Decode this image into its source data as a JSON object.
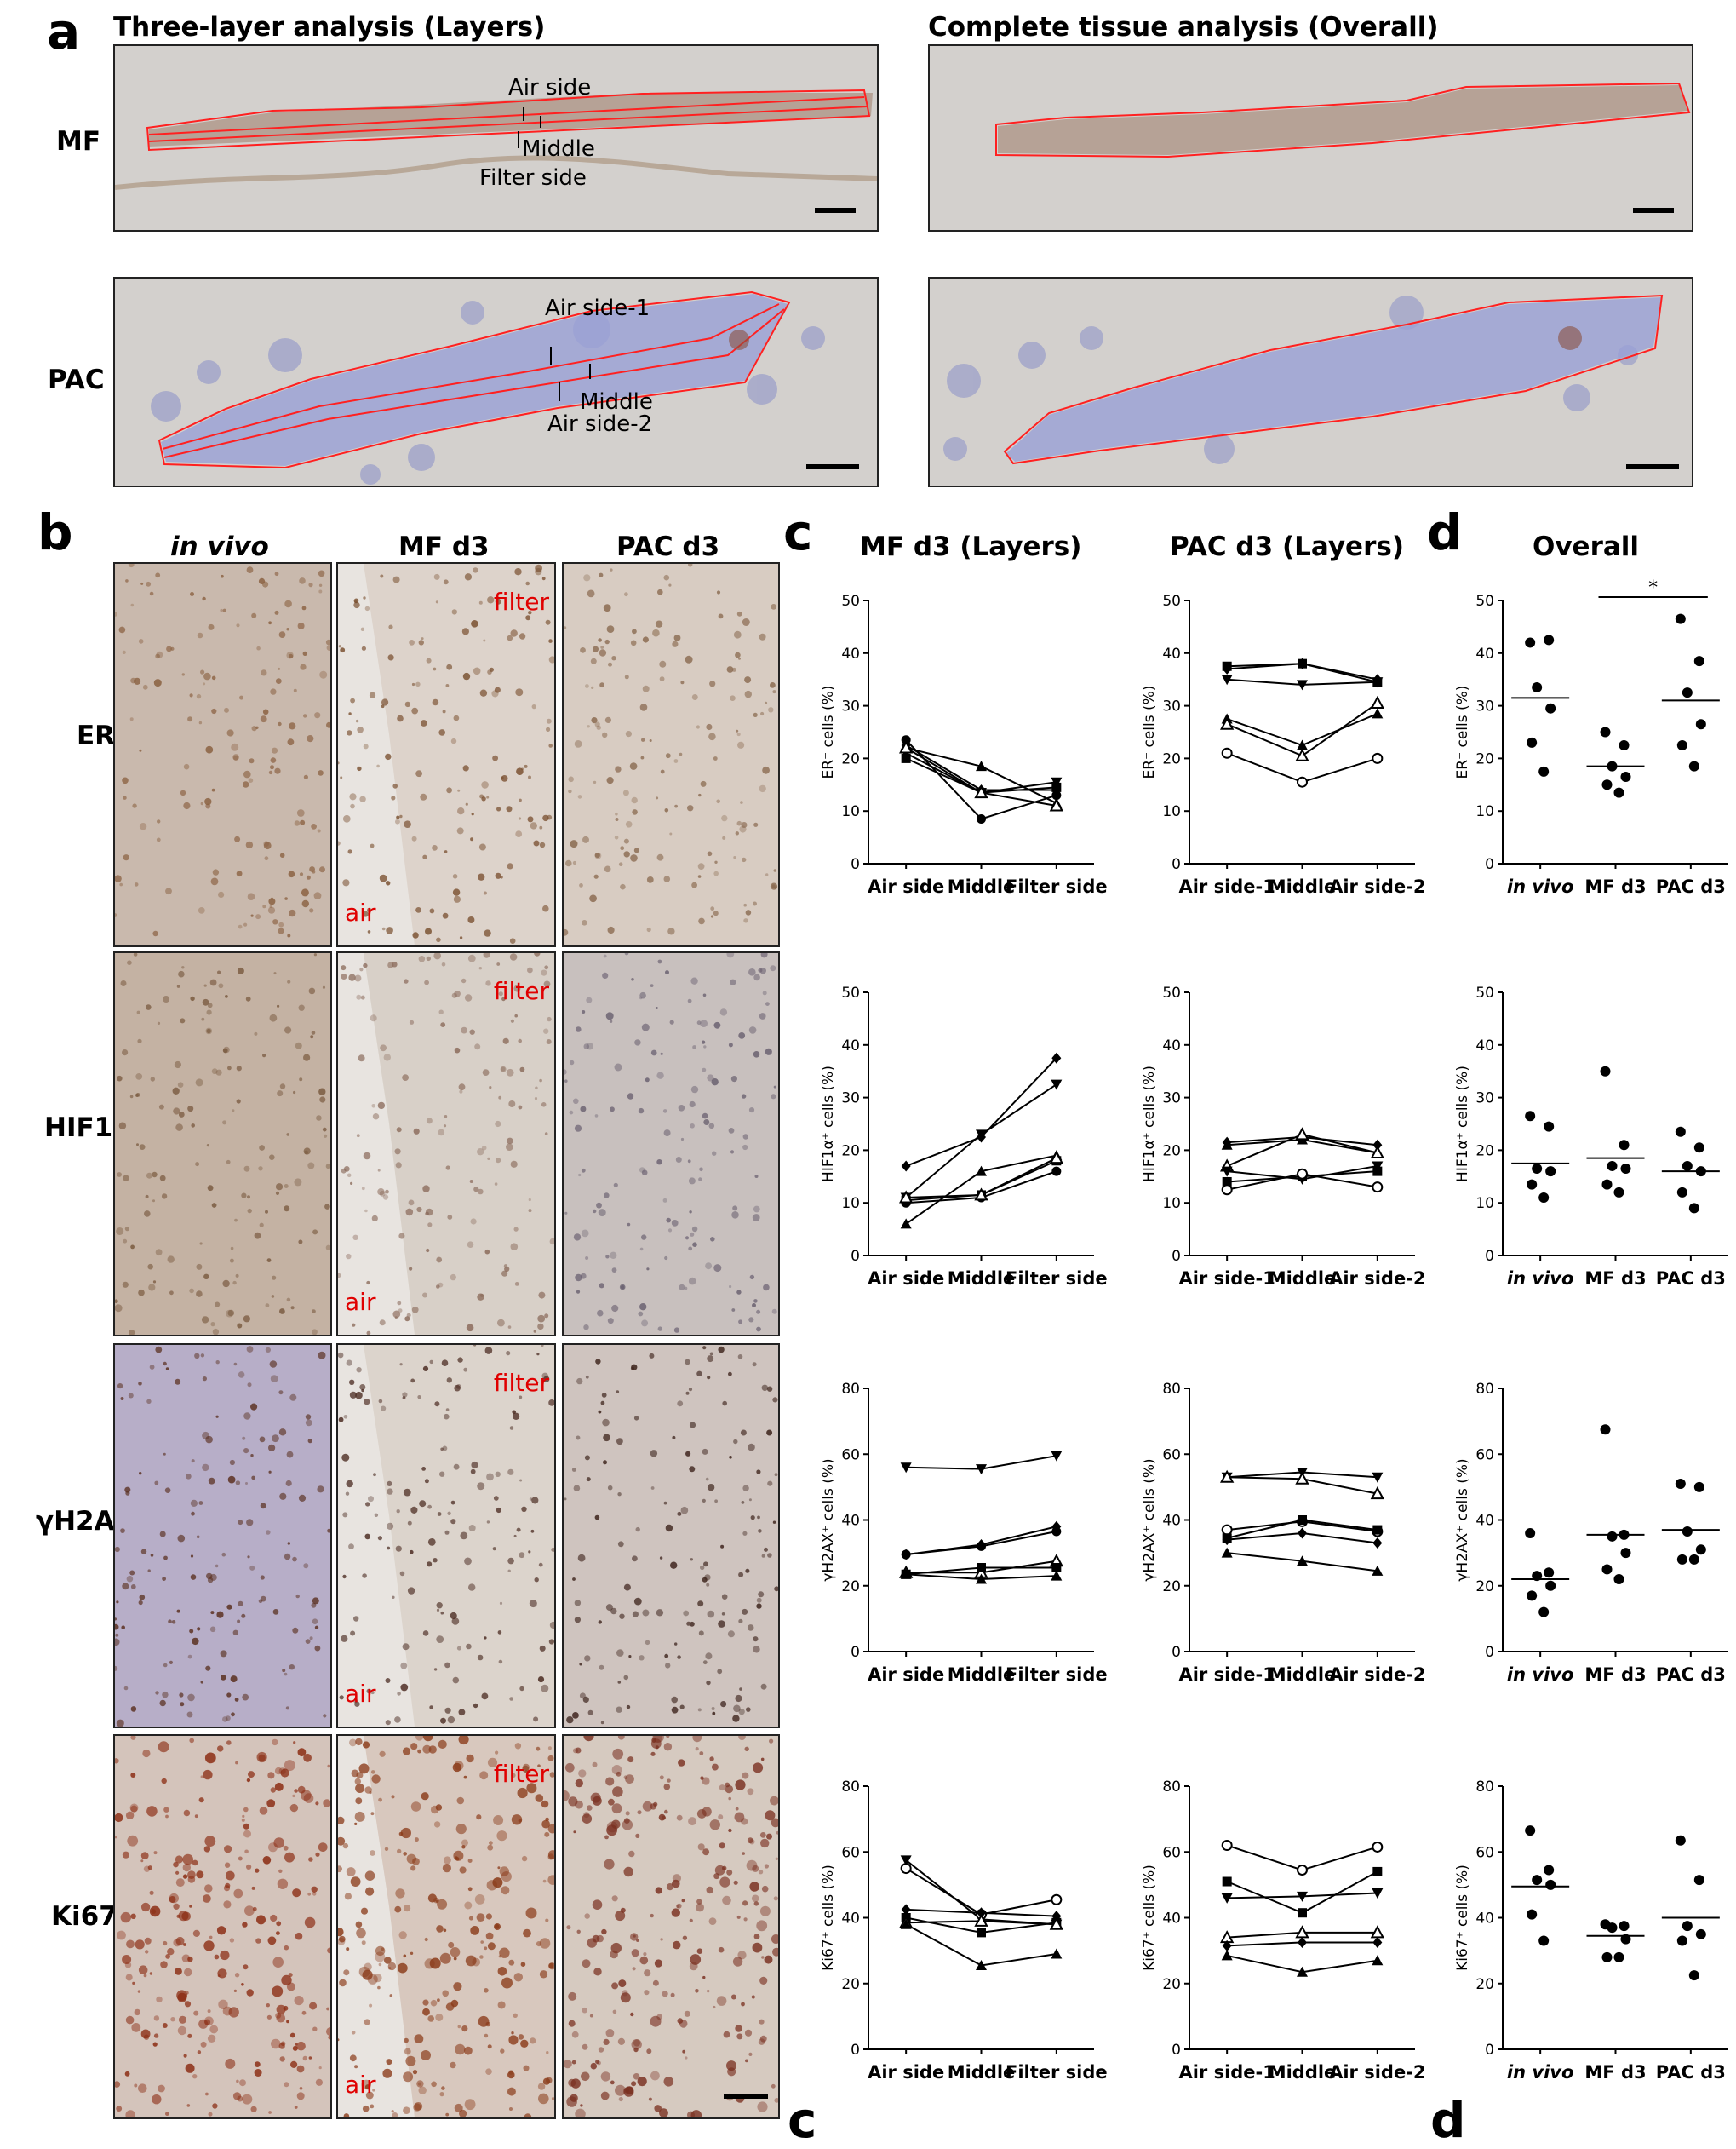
{
  "panel_a": {
    "letter": "a",
    "header_layers": "Three-layer analysis (Layers)",
    "header_overall": "Complete tissue analysis (Overall)",
    "row_labels": [
      "MF",
      "PAC"
    ],
    "mf_labels": [
      "Air side",
      "Middle",
      "Filter side"
    ],
    "pac_labels": [
      "Air side-1",
      "Middle",
      "Air side-2"
    ]
  },
  "panel_b": {
    "letter": "b",
    "columns": [
      "in vivo",
      "MF d3",
      "PAC d3"
    ],
    "rows": [
      "ER",
      "HIF1α",
      "γH2Ax",
      "Ki67"
    ],
    "label_filter": "filter",
    "label_air": "air"
  },
  "panel_c": {
    "letter": "c",
    "header_mf": "MF d3 (Layers)",
    "header_pac": "PAC d3 (Layers)"
  },
  "panel_d": {
    "letter": "d",
    "header": "Overall"
  },
  "chart_data": [
    {
      "id": "c-mf-er",
      "type": "line",
      "x_categories": [
        "Air side",
        "Middle",
        "Filter side"
      ],
      "ylabel": "ER⁺ cells (%)",
      "ylim": [
        0,
        50
      ],
      "yticks": [
        0,
        10,
        20,
        30,
        40,
        50
      ],
      "series": [
        {
          "marker": "square",
          "values": [
            20,
            13.5,
            14.5
          ]
        },
        {
          "marker": "triangle",
          "values": [
            22,
            18.5,
            11.5
          ]
        },
        {
          "marker": "circle",
          "values": [
            23.5,
            8.5,
            13
          ]
        },
        {
          "marker": "diamond",
          "values": [
            22.5,
            14,
            14
          ]
        },
        {
          "marker": "triangle-down",
          "values": [
            21,
            13.5,
            15.5
          ]
        },
        {
          "marker": "triangle-open",
          "values": [
            22,
            13.5,
            11
          ]
        }
      ]
    },
    {
      "id": "c-pac-er",
      "type": "line",
      "x_categories": [
        "Air side-1",
        "Middle",
        "Air side-2"
      ],
      "ylabel": "ER⁺ cells (%)",
      "ylim": [
        0,
        50
      ],
      "yticks": [
        0,
        10,
        20,
        30,
        40,
        50
      ],
      "series": [
        {
          "marker": "square",
          "values": [
            37.5,
            38,
            34.5
          ]
        },
        {
          "marker": "triangle-down",
          "values": [
            35,
            34,
            34.5
          ]
        },
        {
          "marker": "diamond",
          "values": [
            37,
            38,
            35
          ]
        },
        {
          "marker": "triangle",
          "values": [
            27.5,
            22.5,
            28.5
          ]
        },
        {
          "marker": "triangle-open",
          "values": [
            26.5,
            20.5,
            30.5
          ]
        },
        {
          "marker": "circle-open",
          "values": [
            21,
            15.5,
            20
          ]
        }
      ]
    },
    {
      "id": "d-er",
      "type": "scatter",
      "x_categories": [
        "in vivo",
        "MF d3",
        "PAC d3"
      ],
      "ylabel": "ER⁺ cells (%)",
      "ylim": [
        0,
        50
      ],
      "yticks": [
        0,
        10,
        20,
        30,
        40,
        50
      ],
      "points": [
        [
          42,
          42.5,
          33.5,
          29.5,
          23,
          17.5
        ],
        [
          25,
          22.5,
          18.5,
          16.5,
          15,
          13.5
        ],
        [
          46.5,
          38.5,
          32.5,
          26.5,
          22.5,
          18.5
        ]
      ],
      "means": [
        31.5,
        18.5,
        31
      ],
      "significance": {
        "pair": [
          1,
          2
        ],
        "label": "*"
      }
    },
    {
      "id": "c-mf-hif",
      "type": "line",
      "x_categories": [
        "Air side",
        "Middle",
        "Filter side"
      ],
      "ylabel": "HIF1α⁺ cells (%)",
      "ylim": [
        0,
        50
      ],
      "yticks": [
        0,
        10,
        20,
        30,
        40,
        50
      ],
      "series": [
        {
          "marker": "diamond",
          "values": [
            17,
            22.5,
            37.5
          ]
        },
        {
          "marker": "triangle-down",
          "values": [
            11,
            23,
            32.5
          ]
        },
        {
          "marker": "triangle",
          "values": [
            6,
            16,
            19
          ]
        },
        {
          "marker": "square",
          "values": [
            10.5,
            11.5,
            18
          ]
        },
        {
          "marker": "circle",
          "values": [
            10,
            11,
            16
          ]
        },
        {
          "marker": "triangle-open",
          "values": [
            11,
            11.5,
            18.5
          ]
        }
      ]
    },
    {
      "id": "c-pac-hif",
      "type": "line",
      "x_categories": [
        "Air side-1",
        "Middle",
        "Air side-2"
      ],
      "ylabel": "HIF1α⁺ cells (%)",
      "ylim": [
        0,
        50
      ],
      "yticks": [
        0,
        10,
        20,
        30,
        40,
        50
      ],
      "series": [
        {
          "marker": "diamond",
          "values": [
            21.5,
            22.5,
            21
          ]
        },
        {
          "marker": "triangle",
          "values": [
            21,
            22,
            19.5
          ]
        },
        {
          "marker": "triangle-open",
          "values": [
            17,
            23,
            19.5
          ]
        },
        {
          "marker": "triangle-down",
          "values": [
            16,
            14.5,
            17
          ]
        },
        {
          "marker": "square",
          "values": [
            14,
            15,
            16
          ]
        },
        {
          "marker": "circle-open",
          "values": [
            12.5,
            15.5,
            13
          ]
        }
      ]
    },
    {
      "id": "d-hif",
      "type": "scatter",
      "x_categories": [
        "in vivo",
        "MF d3",
        "PAC d3"
      ],
      "ylabel": "HIF1α⁺ cells (%)",
      "ylim": [
        0,
        50
      ],
      "yticks": [
        0,
        10,
        20,
        30,
        40,
        50
      ],
      "points": [
        [
          26.5,
          24.5,
          16.5,
          16,
          13.5,
          11
        ],
        [
          35,
          21,
          17,
          16.5,
          13.5,
          12
        ],
        [
          23.5,
          20.5,
          17,
          16,
          12,
          9
        ]
      ],
      "means": [
        17.5,
        18.5,
        16
      ]
    },
    {
      "id": "c-mf-gh",
      "type": "line",
      "x_categories": [
        "Air side",
        "Middle",
        "Filter side"
      ],
      "ylabel": "γH2AX⁺ cells (%)",
      "ylim": [
        0,
        80
      ],
      "yticks": [
        0,
        20,
        40,
        60,
        80
      ],
      "series": [
        {
          "marker": "triangle-down",
          "values": [
            56,
            55.5,
            59.5
          ]
        },
        {
          "marker": "diamond",
          "values": [
            29.5,
            32.5,
            38
          ]
        },
        {
          "marker": "circle",
          "values": [
            29.5,
            32,
            36.5
          ]
        },
        {
          "marker": "triangle-open",
          "values": [
            24,
            24,
            27.5
          ]
        },
        {
          "marker": "square",
          "values": [
            23.5,
            25.5,
            25.5
          ]
        },
        {
          "marker": "triangle",
          "values": [
            23.5,
            22,
            23
          ]
        }
      ]
    },
    {
      "id": "c-pac-gh",
      "type": "line",
      "x_categories": [
        "Air side-1",
        "Middle",
        "Air side-2"
      ],
      "ylabel": "γH2AX⁺ cells (%)",
      "ylim": [
        0,
        80
      ],
      "yticks": [
        0,
        20,
        40,
        60,
        80
      ],
      "series": [
        {
          "marker": "triangle-down",
          "values": [
            53,
            54.5,
            53
          ]
        },
        {
          "marker": "triangle-open",
          "values": [
            53,
            52.5,
            48
          ]
        },
        {
          "marker": "circle-open",
          "values": [
            37,
            39.5,
            36.5
          ]
        },
        {
          "marker": "square",
          "values": [
            34.5,
            40,
            37
          ]
        },
        {
          "marker": "diamond",
          "values": [
            34,
            36,
            33
          ]
        },
        {
          "marker": "triangle",
          "values": [
            30,
            27.5,
            24.5
          ]
        }
      ]
    },
    {
      "id": "d-gh",
      "type": "scatter",
      "x_categories": [
        "in vivo",
        "MF d3",
        "PAC d3"
      ],
      "ylabel": "γH2AX⁺ cells (%)",
      "ylim": [
        0,
        80
      ],
      "yticks": [
        0,
        20,
        40,
        60,
        80
      ],
      "points": [
        [
          36,
          24,
          23,
          20,
          17,
          12
        ],
        [
          67.5,
          35.5,
          35,
          30,
          25,
          22
        ],
        [
          51,
          50,
          36.5,
          31,
          28,
          28
        ]
      ],
      "means": [
        22,
        35.5,
        37
      ]
    },
    {
      "id": "c-mf-ki",
      "type": "line",
      "x_categories": [
        "Air side",
        "Middle",
        "Filter side"
      ],
      "ylabel": "Ki67⁺ cells (%)",
      "ylim": [
        0,
        80
      ],
      "yticks": [
        0,
        20,
        40,
        60,
        80
      ],
      "series": [
        {
          "marker": "triangle-down",
          "values": [
            57.5,
            39.5,
            38
          ]
        },
        {
          "marker": "circle-open",
          "values": [
            55,
            41,
            45.5
          ]
        },
        {
          "marker": "diamond",
          "values": [
            42.5,
            41.5,
            40.5
          ]
        },
        {
          "marker": "square",
          "values": [
            40,
            35.5,
            38.5
          ]
        },
        {
          "marker": "triangle-open",
          "values": [
            38.5,
            39,
            38
          ]
        },
        {
          "marker": "triangle",
          "values": [
            38,
            25.5,
            29
          ]
        }
      ]
    },
    {
      "id": "c-pac-ki",
      "type": "line",
      "x_categories": [
        "Air side-1",
        "Middle",
        "Air side-2"
      ],
      "ylabel": "Ki67⁺ cells (%)",
      "ylim": [
        0,
        80
      ],
      "yticks": [
        0,
        20,
        40,
        60,
        80
      ],
      "series": [
        {
          "marker": "circle-open",
          "values": [
            62,
            54.5,
            61.5
          ]
        },
        {
          "marker": "square",
          "values": [
            51,
            41.5,
            54
          ]
        },
        {
          "marker": "triangle-down",
          "values": [
            46,
            46.5,
            47.5
          ]
        },
        {
          "marker": "triangle-open",
          "values": [
            34,
            35.5,
            35.5
          ]
        },
        {
          "marker": "diamond",
          "values": [
            31.5,
            32.5,
            32.5
          ]
        },
        {
          "marker": "triangle",
          "values": [
            28.5,
            23.5,
            27
          ]
        }
      ]
    },
    {
      "id": "d-ki",
      "type": "scatter",
      "x_categories": [
        "in vivo",
        "MF d3",
        "PAC d3"
      ],
      "ylabel": "Ki67⁺ cells (%)",
      "ylim": [
        0,
        80
      ],
      "yticks": [
        0,
        20,
        40,
        60,
        80
      ],
      "points": [
        [
          66.5,
          54.5,
          51.5,
          50,
          41,
          33
        ],
        [
          38,
          37.5,
          37,
          33.5,
          28,
          28
        ],
        [
          63.5,
          51.5,
          37.5,
          35,
          33,
          22.5
        ]
      ],
      "means": [
        49.5,
        34.5,
        40
      ]
    }
  ]
}
